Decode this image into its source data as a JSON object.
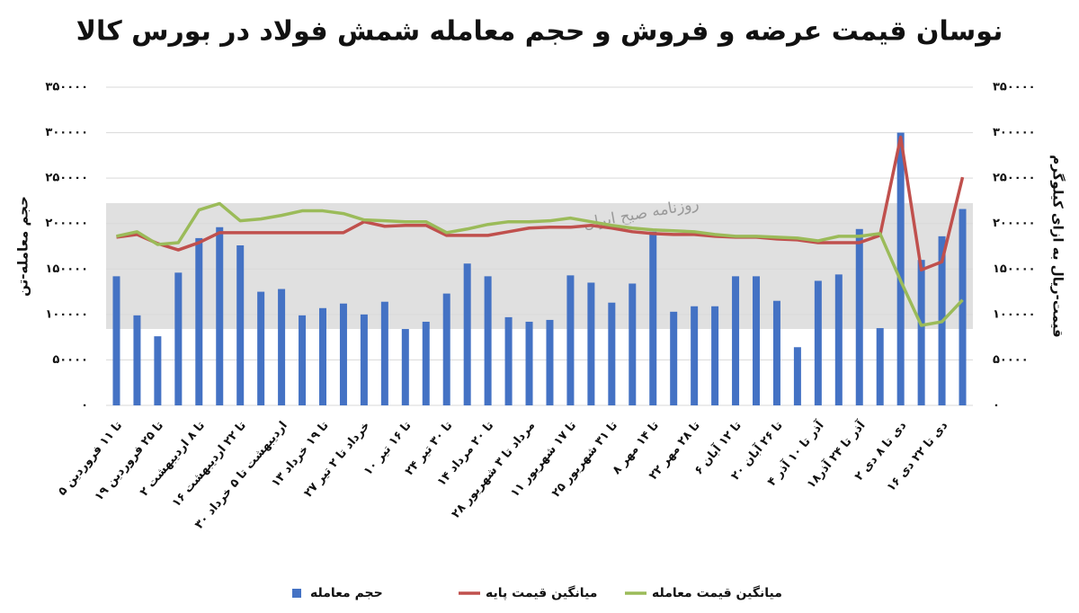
{
  "chart_data": {
    "type": "bar-line",
    "title": "نوسان قیمت عرضه و فروش و حجم معامله شمش فولاد در بورس کالا",
    "y_label": "حجم معامله-تن",
    "y2_label": "قیمت-ریال به ازای کیلوگرم",
    "watermark": "روزنامه صبح ایران",
    "categories": [
      "۵ تا ۱۱ فروردین",
      null,
      "۱۹ تا ۲۵ فروردین",
      null,
      "۲ تا ۸ اردیبهشت",
      null,
      "۱۶ تا ۲۲ اردیبهشت",
      null,
      "۳۰ اردیبهشت تا ۵ خرداد",
      null,
      "۱۳ تا ۱۹ خرداد",
      null,
      "۲۷ خرداد تا ۲ تیر",
      null,
      "۱۰ تا ۱۶ تیر",
      null,
      "۲۴ تا ۳۰ تیر",
      null,
      "۱۴ تا ۲۰ مرداد",
      null,
      "۲۸ مرداد تا ۳ شهریور",
      null,
      "۱۱ تا ۱۷ شهریور",
      null,
      "۲۵ تا ۳۱ شهریور",
      null,
      "۸ تا ۱۴ مهر",
      null,
      "۲۲ تا ۲۸ مهر",
      null,
      "۶ تا ۱۲ آبان",
      null,
      "۲۰ تا ۲۶ آبان",
      null,
      "۴ آذر تا ۱۰ آذر",
      null,
      "۱۸آذر تا ۲۴ آذر",
      null,
      "۲ دی تا ۸ دی",
      null,
      "۱۶ دی تا ۲۲ دی",
      null
    ],
    "series": [
      {
        "name": "حجم معامله",
        "type": "bar",
        "color": "#4472c4",
        "values": [
          142000,
          99000,
          76000,
          146000,
          184000,
          196000,
          176000,
          125000,
          128000,
          99000,
          107000,
          112000,
          100000,
          114000,
          84000,
          92000,
          123000,
          156000,
          142000,
          97000,
          92000,
          94000,
          143000,
          135000,
          113000,
          134000,
          191000,
          103000,
          109000,
          109000,
          142000,
          142000,
          115000,
          64000,
          137000,
          144000,
          194000,
          85000,
          300000,
          160000,
          186000,
          216000
        ]
      },
      {
        "name": "میانگین قیمت پایه",
        "type": "line",
        "axis": "y2",
        "color": "#c0504d",
        "values": [
          185000,
          188000,
          178000,
          171000,
          179000,
          190000,
          190000,
          190000,
          190000,
          190000,
          190000,
          190000,
          202000,
          197000,
          198000,
          198000,
          187000,
          187000,
          187000,
          191000,
          195000,
          196000,
          196000,
          198000,
          195000,
          191000,
          189000,
          188000,
          188000,
          186000,
          185000,
          185000,
          183000,
          182000,
          179000,
          179000,
          179000,
          187000,
          295000,
          149000,
          158000,
          251000
        ]
      },
      {
        "name": "میانگین قیمت معامله",
        "type": "line",
        "axis": "y2",
        "color": "#9bbb59",
        "values": [
          186000,
          191000,
          177000,
          179000,
          215000,
          222000,
          203000,
          205000,
          209000,
          214000,
          214000,
          211000,
          204000,
          203000,
          202000,
          202000,
          190000,
          194000,
          199000,
          202000,
          202000,
          203000,
          206000,
          202000,
          198000,
          195000,
          193000,
          192000,
          191000,
          188000,
          186000,
          186000,
          185000,
          184000,
          181000,
          186000,
          186000,
          189000,
          137000,
          88000,
          92000,
          116000
        ]
      }
    ],
    "ylim": [
      0,
      350000
    ],
    "yticks": [
      {
        "value": 0,
        "label": "۰"
      },
      {
        "value": 50000,
        "label": "۵۰۰۰۰"
      },
      {
        "value": 100000,
        "label": "۱۰۰۰۰۰"
      },
      {
        "value": 150000,
        "label": "۱۵۰۰۰۰"
      },
      {
        "value": 200000,
        "label": "۲۰۰۰۰۰"
      },
      {
        "value": 250000,
        "label": "۲۵۰۰۰۰"
      },
      {
        "value": 300000,
        "label": "۳۰۰۰۰۰"
      },
      {
        "value": 350000,
        "label": "۳۵۰۰۰۰"
      }
    ],
    "y2lim": [
      0,
      350000
    ],
    "y2ticks": [
      {
        "value": 0,
        "label": "۰"
      },
      {
        "value": 50000,
        "label": "۵۰۰۰۰"
      },
      {
        "value": 100000,
        "label": "۱۰۰۰۰۰"
      },
      {
        "value": 150000,
        "label": "۱۵۰۰۰۰"
      },
      {
        "value": 200000,
        "label": "۲۰۰۰۰۰"
      },
      {
        "value": 250000,
        "label": "۲۵۰۰۰۰"
      },
      {
        "value": 300000,
        "label": "۳۰۰۰۰۰"
      },
      {
        "value": 350000,
        "label": "۳۵۰۰۰۰"
      }
    ],
    "grid": true,
    "legend": "bottom"
  }
}
